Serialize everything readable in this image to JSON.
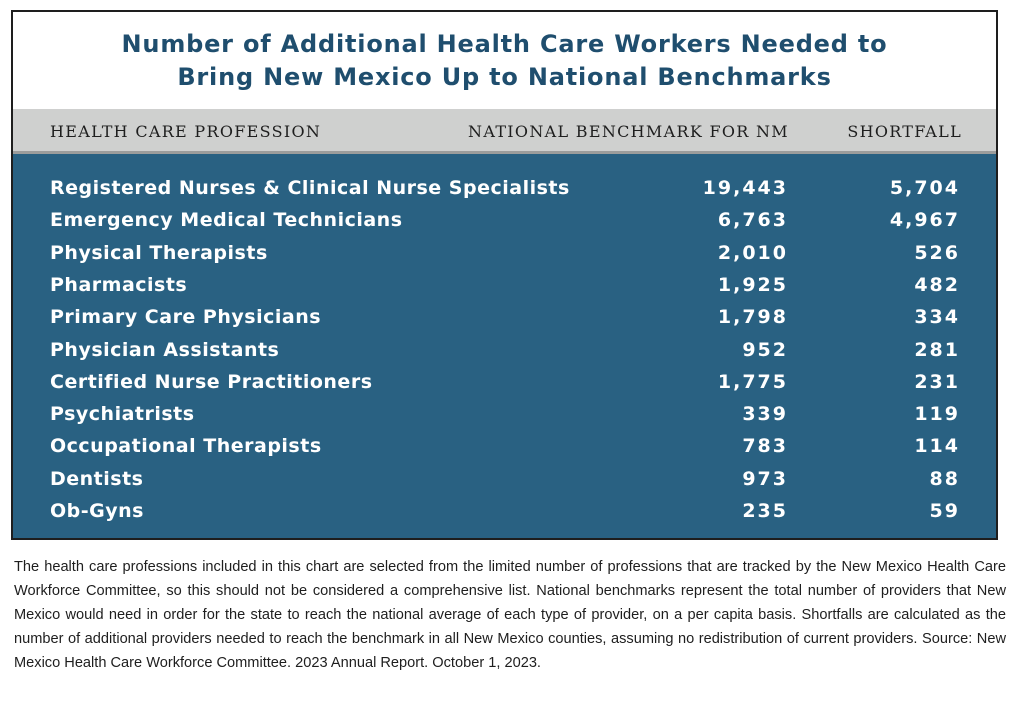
{
  "chart_data": {
    "type": "table",
    "title_line1": "Number of Additional Health Care Workers Needed to",
    "title_line2": "Bring New Mexico Up to National Benchmarks",
    "columns": [
      "HEALTH CARE PROFESSION",
      "NATIONAL BENCHMARK FOR NM",
      "SHORTFALL"
    ],
    "rows": [
      {
        "profession": "Registered Nurses & Clinical Nurse Specialists",
        "benchmark": "19,443",
        "shortfall": "5,704"
      },
      {
        "profession": "Emergency Medical Technicians",
        "benchmark": "6,763",
        "shortfall": "4,967"
      },
      {
        "profession": "Physical Therapists",
        "benchmark": "2,010",
        "shortfall": "526"
      },
      {
        "profession": "Pharmacists",
        "benchmark": "1,925",
        "shortfall": "482"
      },
      {
        "profession": "Primary Care Physicians",
        "benchmark": "1,798",
        "shortfall": "334"
      },
      {
        "profession": "Physician Assistants",
        "benchmark": "952",
        "shortfall": "281"
      },
      {
        "profession": "Certified Nurse Practitioners",
        "benchmark": "1,775",
        "shortfall": "231"
      },
      {
        "profession": "Psychiatrists",
        "benchmark": "339",
        "shortfall": "119"
      },
      {
        "profession": "Occupational Therapists",
        "benchmark": "783",
        "shortfall": "114"
      },
      {
        "profession": "Dentists",
        "benchmark": "973",
        "shortfall": "88"
      },
      {
        "profession": "Ob-Gyns",
        "benchmark": "235",
        "shortfall": "59"
      }
    ],
    "colors": {
      "title": "#1f4e6e",
      "header_bg": "#cfd0cf",
      "body_bg": "#296182",
      "body_text": "#ffffff"
    }
  },
  "footnote": "The health care professions included in this chart are selected from the limited number of professions that are tracked by the New Mexico Health Care Workforce Committee, so this should not be considered a comprehensive list. National benchmarks represent the total number of providers that New Mexico would need in order for the state to reach the national average of each type of provider, on a per capita basis. Shortfalls are calculated as the number of additional providers needed to reach the benchmark in all New Mexico counties, assuming no redistribution of current providers. Source: New Mexico Health Care Workforce Committee. 2023 Annual Report. October 1, 2023."
}
